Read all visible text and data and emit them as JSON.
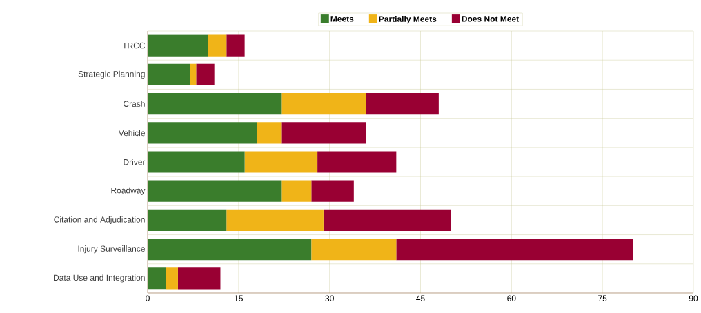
{
  "chart_data": {
    "type": "bar",
    "orientation": "horizontal",
    "stacked": true,
    "categories": [
      "TRCC",
      "Strategic Planning",
      "Crash",
      "Vehicle",
      "Driver",
      "Roadway",
      "Citation and Adjudication",
      "Injury Surveillance",
      "Data Use and Integration"
    ],
    "series": [
      {
        "name": "Meets",
        "color": "#3a7d2c",
        "values": [
          10,
          7,
          22,
          18,
          16,
          22,
          13,
          27,
          3
        ]
      },
      {
        "name": "Partially Meets",
        "color": "#f0b418",
        "values": [
          3,
          1,
          14,
          4,
          12,
          5,
          16,
          14,
          2
        ]
      },
      {
        "name": "Does Not Meet",
        "color": "#990033",
        "values": [
          3,
          3,
          12,
          14,
          13,
          7,
          21,
          39,
          7
        ]
      }
    ],
    "xlim": [
      0,
      90
    ],
    "xticks": [
      0,
      15,
      30,
      45,
      60,
      75,
      90
    ],
    "grid": true,
    "legend": "top"
  }
}
